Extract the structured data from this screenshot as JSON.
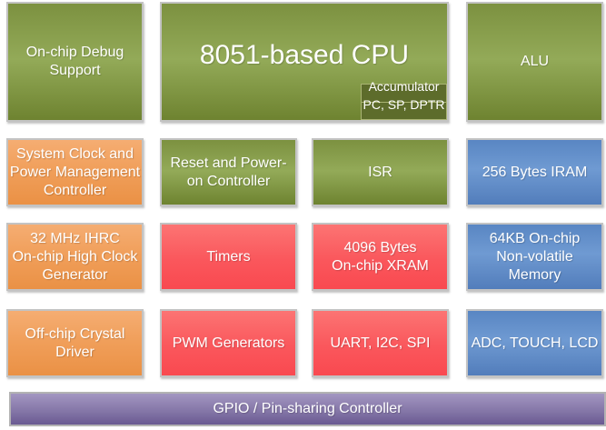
{
  "diagram": {
    "description": "8051 MCU block diagram",
    "palette": {
      "green_top": "#7c9140",
      "green_mid": "#93aa58",
      "green_bottom": "#6e8330",
      "orange_top": "#f5ad72",
      "orange_mid": "#f09e59",
      "orange_bottom": "#ea9145",
      "red_top": "#fc7473",
      "red_mid": "#fa575c",
      "red_bottom": "#f94950",
      "blue_top": "#5986c3",
      "blue_mid": "#6f9ad2",
      "blue_bottom": "#527dbb",
      "purple_top": "#a396c1",
      "purple_mid": "#8577a8",
      "purple_bottom": "#6a5a92",
      "accumulator_bg": "#5d6c2b",
      "border": "#c3c3c3",
      "text": "#ffffff"
    },
    "blocks": {
      "debug": {
        "label": "On-chip Debug\nSupport",
        "color": "green"
      },
      "cpu": {
        "label": "8051-based CPU",
        "color": "green"
      },
      "accumulator": {
        "line1": "Accumulator",
        "line2": "PC, SP, DPTR",
        "color": "dark-green"
      },
      "alu": {
        "label": "ALU",
        "color": "green"
      },
      "system_clock": {
        "label": "System Clock and\nPower Management\nController",
        "color": "orange"
      },
      "reset": {
        "label": "Reset and Power-\non Controller",
        "color": "green"
      },
      "isr": {
        "label": "ISR",
        "color": "green"
      },
      "iram": {
        "label": "256 Bytes IRAM",
        "color": "blue"
      },
      "ihrc": {
        "label": "32 MHz IHRC\nOn-chip High Clock\nGenerator",
        "color": "orange"
      },
      "timers": {
        "label": "Timers",
        "color": "red"
      },
      "xram": {
        "label": "4096 Bytes\nOn-chip XRAM",
        "color": "red"
      },
      "nvm": {
        "label": "64KB On-chip\nNon-volatile\nMemory",
        "color": "blue"
      },
      "crystal": {
        "label": "Off-chip Crystal\nDriver",
        "color": "orange"
      },
      "pwm": {
        "label": "PWM Generators",
        "color": "red"
      },
      "uart": {
        "label": "UART, I2C, SPI",
        "color": "red"
      },
      "adc": {
        "label": "ADC, TOUCH, LCD",
        "color": "blue"
      },
      "gpio": {
        "label": "GPIO / Pin-sharing Controller",
        "color": "purple"
      }
    }
  }
}
